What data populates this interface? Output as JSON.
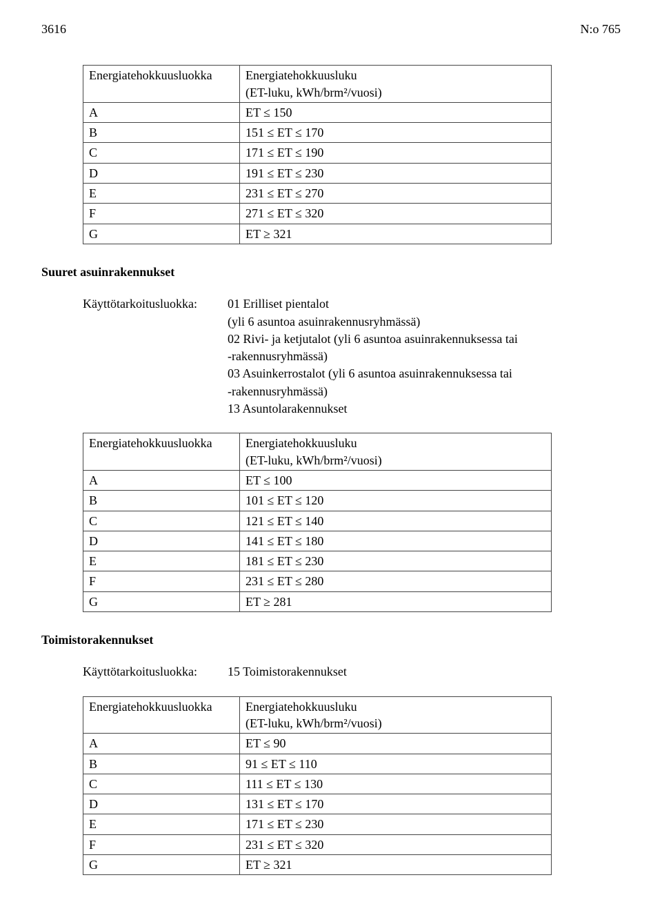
{
  "header": {
    "page_number": "3616",
    "doc_number": "N:o 765"
  },
  "section1": {
    "table": {
      "header_col1": "Energiatehokkuusluokka",
      "header_col2_line1": "Energiatehokkuusluku",
      "header_col2_line2": "(ET-luku, kWh/brm²/vuosi)",
      "rows": [
        {
          "c1": "A",
          "c2": "ET ≤ 150"
        },
        {
          "c1": "B",
          "c2": "151 ≤ ET ≤ 170"
        },
        {
          "c1": "C",
          "c2": "171 ≤ ET ≤ 190"
        },
        {
          "c1": "D",
          "c2": "191 ≤ ET ≤ 230"
        },
        {
          "c1": "E",
          "c2": "231 ≤ ET ≤ 270"
        },
        {
          "c1": "F",
          "c2": "271 ≤ ET ≤ 320"
        },
        {
          "c1": "G",
          "c2": "ET ≥ 321"
        }
      ]
    }
  },
  "section2": {
    "heading": "Suuret asuinrakennukset",
    "usage_label": "Käyttötarkoitusluokka:",
    "usage_lines": [
      "01 Erilliset pientalot",
      "(yli 6 asuntoa asuinrakennusryhmässä)",
      "02 Rivi- ja ketjutalot (yli 6 asuntoa asuinrakennuksessa tai",
      "-rakennusryhmässä)",
      "03 Asuinkerrostalot (yli 6 asuntoa asuinrakennuksessa tai",
      "-rakennusryhmässä)",
      "13 Asuntolarakennukset"
    ],
    "table": {
      "header_col1": "Energiatehokkuusluokka",
      "header_col2_line1": "Energiatehokkuusluku",
      "header_col2_line2": "(ET-luku, kWh/brm²/vuosi)",
      "rows": [
        {
          "c1": "A",
          "c2": "ET ≤ 100"
        },
        {
          "c1": "B",
          "c2": "101 ≤ ET ≤ 120"
        },
        {
          "c1": "C",
          "c2": "121 ≤ ET ≤ 140"
        },
        {
          "c1": "D",
          "c2": "141 ≤ ET ≤ 180"
        },
        {
          "c1": "E",
          "c2": "181 ≤ ET ≤ 230"
        },
        {
          "c1": "F",
          "c2": "231 ≤ ET ≤ 280"
        },
        {
          "c1": "G",
          "c2": "ET  ≥ 281"
        }
      ]
    }
  },
  "section3": {
    "heading": "Toimistorakennukset",
    "usage_label": "Käyttötarkoitusluokka:",
    "usage_lines": [
      "15 Toimistorakennukset"
    ],
    "table": {
      "header_col1": "Energiatehokkuusluokka",
      "header_col2_line1": "Energiatehokkuusluku",
      "header_col2_line2": "(ET-luku, kWh/brm²/vuosi)",
      "rows": [
        {
          "c1": "A",
          "c2": "ET ≤ 90"
        },
        {
          "c1": "B",
          "c2": "91 ≤ ET ≤ 110"
        },
        {
          "c1": "C",
          "c2": "111 ≤ ET ≤ 130"
        },
        {
          "c1": "D",
          "c2": "131 ≤ ET ≤ 170"
        },
        {
          "c1": "E",
          "c2": "171 ≤ ET ≤ 230"
        },
        {
          "c1": "F",
          "c2": "231 ≤ ET ≤ 320"
        },
        {
          "c1": "G",
          "c2": "ET  ≥ 321"
        }
      ]
    }
  }
}
